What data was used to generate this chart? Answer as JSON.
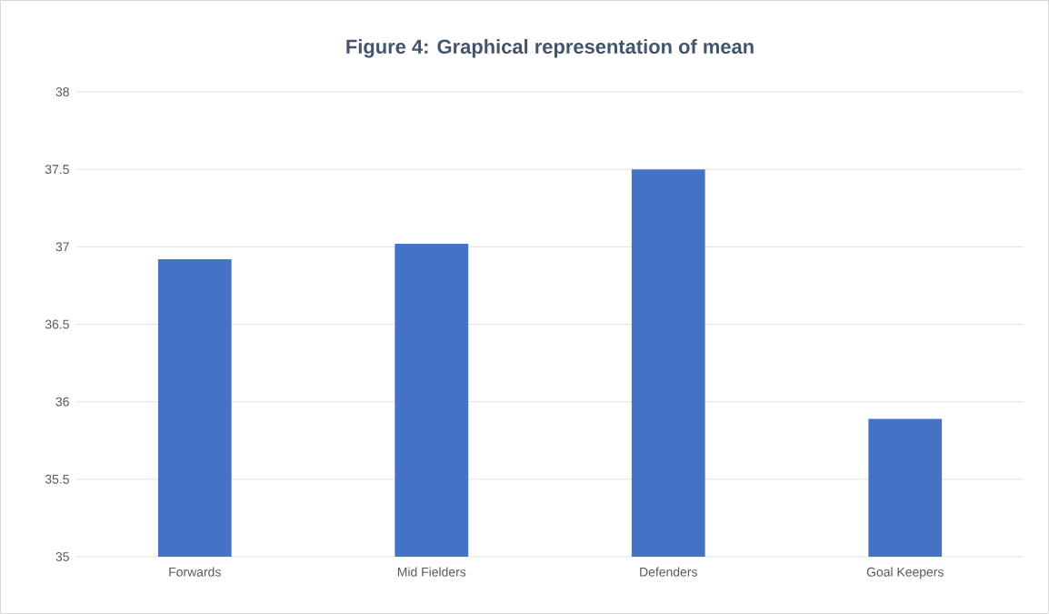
{
  "chart_data": {
    "type": "bar",
    "title": "Figure 4: Graphical representation of mean",
    "categories": [
      "Forwards",
      "Mid Fielders",
      "Defenders",
      "Goal Keepers"
    ],
    "values": [
      36.92,
      37.02,
      37.5,
      35.89
    ],
    "color": "#4472c4",
    "ylim": [
      35,
      38
    ],
    "yticks": [
      35,
      35.5,
      36,
      36.5,
      37,
      37.5,
      38
    ],
    "grid": "y"
  }
}
